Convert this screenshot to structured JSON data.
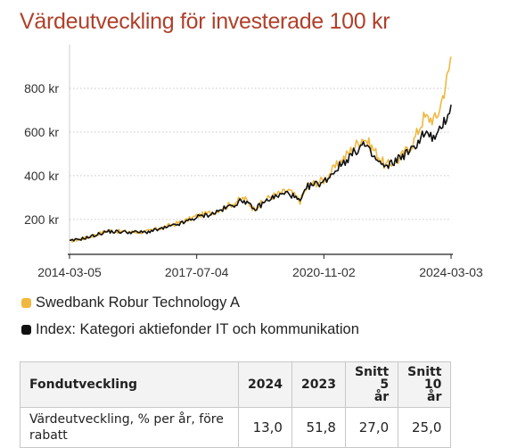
{
  "title": "Värdeutveckling för investerade 100 kr",
  "colors": {
    "title": "#b0402a",
    "fund": "#f0b840",
    "index": "#111111",
    "grid": "#c8c8c8"
  },
  "chart_data": {
    "type": "line",
    "title": "Värdeutveckling för investerade 100 kr",
    "y_ticks": [
      "200 kr",
      "400 kr",
      "600 kr",
      "800 kr"
    ],
    "y_tick_values": [
      200,
      400,
      600,
      800
    ],
    "x_ticks": [
      "2014-03-05",
      "2017-07-04",
      "2020-11-02",
      "2024-03-03"
    ],
    "ylim": [
      40,
      980
    ],
    "grid": "horizontal dotted",
    "legend_position": "bottom",
    "x_dates": [
      "2014-03-05",
      "2014-09-01",
      "2015-03-01",
      "2015-09-01",
      "2016-03-01",
      "2016-09-01",
      "2017-03-01",
      "2017-07-04",
      "2017-12-01",
      "2018-06-01",
      "2018-10-01",
      "2019-01-01",
      "2019-06-01",
      "2019-12-01",
      "2020-03-20",
      "2020-06-01",
      "2020-11-02",
      "2021-04-01",
      "2021-11-15",
      "2022-03-01",
      "2022-06-15",
      "2022-10-15",
      "2023-03-01",
      "2023-06-15",
      "2023-10-15",
      "2023-12-15",
      "2024-02-01",
      "2024-03-03"
    ],
    "series": [
      {
        "name": "Swedbank Robur Technology A",
        "values": [
          100,
          118,
          148,
          143,
          142,
          165,
          190,
          215,
          232,
          270,
          298,
          248,
          302,
          332,
          285,
          355,
          380,
          460,
          578,
          515,
          445,
          472,
          548,
          665,
          660,
          765,
          860,
          945
        ]
      },
      {
        "name": "Index: Kategori aktiefonder IT och kommunikation",
        "values": [
          100,
          118,
          145,
          142,
          141,
          160,
          185,
          210,
          226,
          263,
          290,
          243,
          295,
          323,
          280,
          350,
          372,
          445,
          545,
          480,
          435,
          480,
          520,
          595,
          568,
          638,
          680,
          725
        ]
      }
    ]
  },
  "legend": [
    {
      "label": "Swedbank Robur Technology A",
      "color": "#f0b840"
    },
    {
      "label": "Index: Kategori aktiefonder IT och kommunikation",
      "color": "#111111"
    }
  ],
  "table": {
    "headers": [
      "Fondutveckling",
      "2024",
      "2023",
      "Snitt 5 år",
      "Snitt 10 år"
    ],
    "header_lines": {
      "s5_a": "Snitt 5",
      "s5_b": "år",
      "s10_a": "Snitt",
      "s10_b": "10 år"
    },
    "rows": [
      {
        "label": "Värdeutveckling, % per år, före rabatt",
        "values": [
          "13,0",
          "51,8",
          "27,0",
          "25,0"
        ]
      }
    ]
  }
}
